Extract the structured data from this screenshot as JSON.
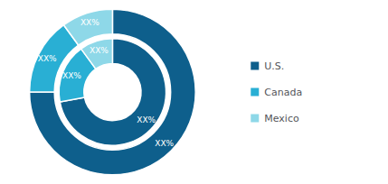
{
  "chart_data": {
    "type": "pie",
    "categories": [
      "U.S.",
      "Canada",
      "Mexico"
    ],
    "series": [
      {
        "values": [
          75,
          15,
          10
        ],
        "value_labels": [
          "XX%",
          "XX%",
          "XX%"
        ],
        "colors": [
          "#0e5f8c",
          "#29afd4",
          "#8ed8e8"
        ]
      },
      {
        "values": [
          72,
          18,
          10
        ],
        "value_labels": [
          "XX%",
          "XX%",
          "XX%"
        ],
        "colors": [
          "#0e5f8c",
          "#29afd4",
          "#8ed8e8"
        ]
      }
    ],
    "data_labels": true,
    "legend": "right"
  }
}
